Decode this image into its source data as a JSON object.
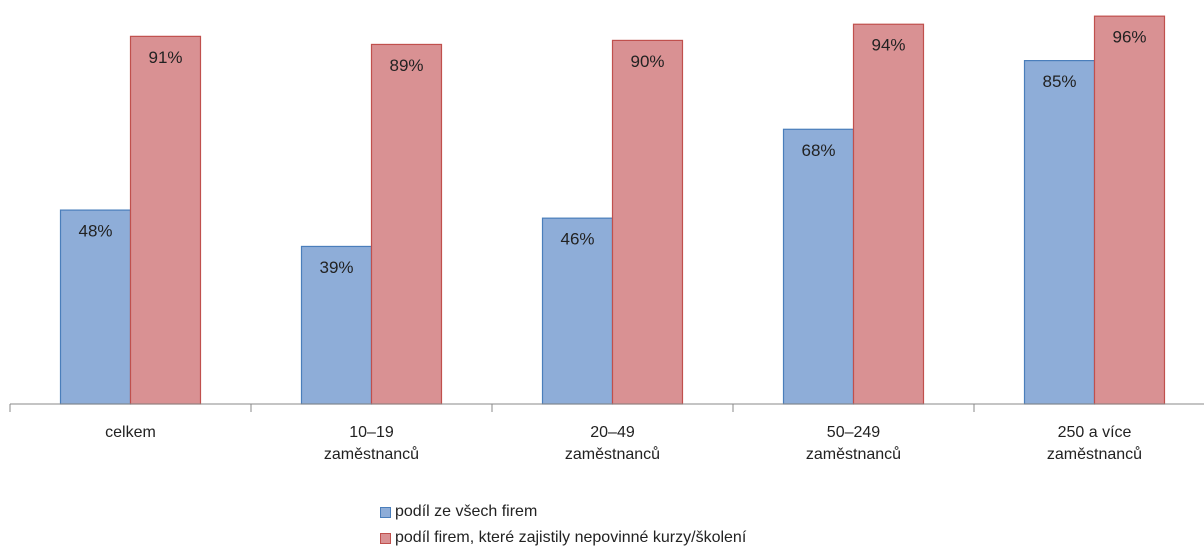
{
  "chart_data": {
    "type": "bar",
    "categories": [
      "celkem",
      "10–19 zaměstnanců",
      "20–49 zaměstnanců",
      "50–249 zaměstnanců",
      "250 a více zaměstnanců"
    ],
    "series": [
      {
        "name": "podíl ze všech firem",
        "color": "#8eadd8",
        "values": [
          48,
          39,
          46,
          68,
          85
        ],
        "value_labels": [
          "48%",
          "39%",
          "46%",
          "68%",
          "85%"
        ]
      },
      {
        "name": "podíl firem, které zajistily nepovinné kurzy/školení",
        "color": "#d99193",
        "values": [
          91,
          89,
          90,
          94,
          96
        ],
        "value_labels": [
          "91%",
          "89%",
          "90%",
          "94%",
          "96%"
        ]
      }
    ],
    "ylim": [
      0,
      100
    ]
  }
}
